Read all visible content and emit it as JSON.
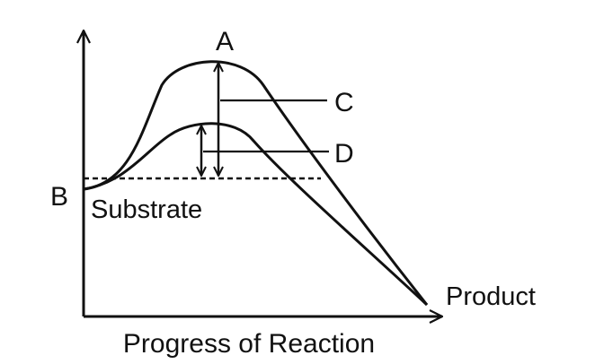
{
  "diagram": {
    "labels": {
      "a": "A",
      "b": "B",
      "c": "C",
      "d": "D",
      "substrate": "Substrate",
      "product": "Product",
      "x_axis": "Progress of Reaction"
    },
    "line_color": "#111111"
  }
}
